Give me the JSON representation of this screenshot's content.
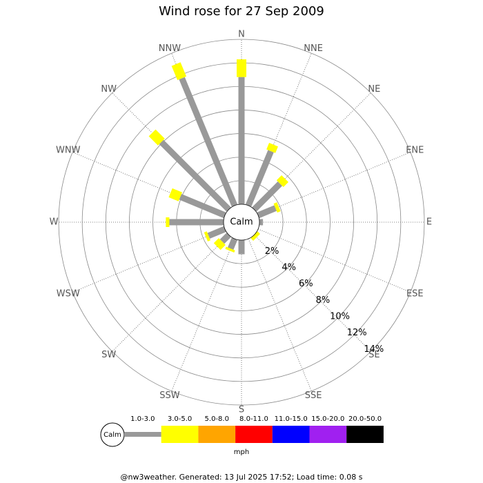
{
  "chart_data": {
    "type": "windrose",
    "title": "Wind rose for 27 Sep 2009",
    "categories": [
      "N",
      "NNE",
      "NE",
      "ENE",
      "E",
      "ESE",
      "SE",
      "SSE",
      "S",
      "SSW",
      "SW",
      "WSW",
      "W",
      "WNW",
      "NW",
      "NNW"
    ],
    "series": [
      {
        "name": "1.0-3.0",
        "color": "#999999",
        "values": [
          10.8,
          5.0,
          3.1,
          1.6,
          0.3,
          0,
          0,
          0,
          1.2,
          0.9,
          0.8,
          1.5,
          4.6,
          4.1,
          8.1,
          11.7
        ]
      },
      {
        "name": "3.0-5.0",
        "color": "#ffff00",
        "values": [
          1.5,
          0.6,
          0.6,
          0.3,
          0,
          0,
          0.3,
          0,
          0,
          0.2,
          0.6,
          0.25,
          0.3,
          0.9,
          1.1,
          1.3
        ]
      },
      {
        "name": "5.0-8.0",
        "color": "#ffa500",
        "values": [
          0,
          0,
          0,
          0,
          0,
          0,
          0,
          0,
          0,
          0,
          0,
          0,
          0,
          0,
          0,
          0
        ]
      },
      {
        "name": "8.0-11.0",
        "color": "#ff0000",
        "values": [
          0,
          0,
          0,
          0,
          0,
          0,
          0,
          0,
          0,
          0,
          0,
          0,
          0,
          0,
          0,
          0
        ]
      },
      {
        "name": "11.0-15.0",
        "color": "#0000ff",
        "values": [
          0,
          0,
          0,
          0,
          0,
          0,
          0,
          0,
          0,
          0,
          0,
          0,
          0,
          0,
          0,
          0
        ]
      },
      {
        "name": "15.0-20.0",
        "color": "#a020f0",
        "values": [
          0,
          0,
          0,
          0,
          0,
          0,
          0,
          0,
          0,
          0,
          0,
          0,
          0,
          0,
          0,
          0
        ]
      },
      {
        "name": "20.0-50.0",
        "color": "#000000",
        "values": [
          0,
          0,
          0,
          0,
          0,
          0,
          0,
          0,
          0,
          0,
          0,
          0,
          0,
          0,
          0,
          0
        ]
      }
    ],
    "rlim": [
      0,
      14
    ],
    "rticks": [
      {
        "value": 2,
        "label": "2%"
      },
      {
        "value": 4,
        "label": "4%"
      },
      {
        "value": 6,
        "label": "6%"
      },
      {
        "value": 8,
        "label": "8%"
      },
      {
        "value": 10,
        "label": "10%"
      },
      {
        "value": 12,
        "label": "12%"
      },
      {
        "value": 14,
        "label": "14%"
      }
    ],
    "calm_label": "Calm",
    "unit_label": "mph",
    "footer": "@nw3weather. Generated: 13 Jul 2025 17:52; Load time: 0.08 s"
  }
}
